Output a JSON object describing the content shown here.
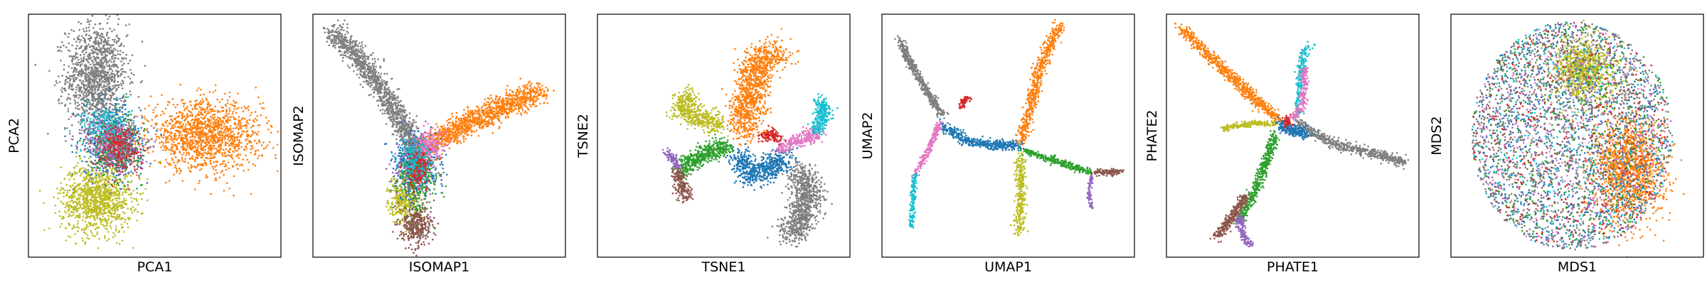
{
  "figure": {
    "colors": {
      "tab_blue": "#1f77b4",
      "tab_orange": "#ff7f0e",
      "tab_green": "#2ca02c",
      "tab_red": "#d62728",
      "tab_purple": "#9467bd",
      "tab_brown": "#8c564b",
      "tab_pink": "#e377c2",
      "tab_gray": "#7f7f7f",
      "tab_olive": "#bcbd22",
      "tab_cyan": "#17becf"
    }
  },
  "chart_data": [
    {
      "type": "scatter",
      "xlabel": "PCA1",
      "ylabel": "PCA2",
      "xlim": [
        0,
        1
      ],
      "ylim": [
        0,
        1
      ],
      "grid": false,
      "legend": "none",
      "ticks": "hidden",
      "clusters": [
        {
          "color": "#7f7f7f",
          "shape": "blob",
          "cx": 0.27,
          "cy": 0.74,
          "sx": 0.06,
          "sy": 0.11,
          "n": 1300
        },
        {
          "color": "#bcbd22",
          "shape": "blob",
          "cx": 0.27,
          "cy": 0.24,
          "sx": 0.07,
          "sy": 0.07,
          "n": 1100
        },
        {
          "color": "#ff7f0e",
          "shape": "blob",
          "cx": 0.7,
          "cy": 0.5,
          "sx": 0.11,
          "sy": 0.07,
          "n": 1400
        },
        {
          "color": "#1f77b4",
          "shape": "blob",
          "cx": 0.33,
          "cy": 0.48,
          "sx": 0.06,
          "sy": 0.07,
          "n": 500
        },
        {
          "color": "#2ca02c",
          "shape": "blob",
          "cx": 0.35,
          "cy": 0.46,
          "sx": 0.05,
          "sy": 0.06,
          "n": 300
        },
        {
          "color": "#17becf",
          "shape": "blob",
          "cx": 0.31,
          "cy": 0.53,
          "sx": 0.05,
          "sy": 0.05,
          "n": 250
        },
        {
          "color": "#e377c2",
          "shape": "blob",
          "cx": 0.33,
          "cy": 0.47,
          "sx": 0.05,
          "sy": 0.05,
          "n": 200
        },
        {
          "color": "#9467bd",
          "shape": "blob",
          "cx": 0.36,
          "cy": 0.44,
          "sx": 0.05,
          "sy": 0.05,
          "n": 180
        },
        {
          "color": "#8c564b",
          "shape": "blob",
          "cx": 0.34,
          "cy": 0.45,
          "sx": 0.05,
          "sy": 0.05,
          "n": 180
        },
        {
          "color": "#d62728",
          "shape": "blob",
          "cx": 0.36,
          "cy": 0.45,
          "sx": 0.04,
          "sy": 0.05,
          "n": 150
        }
      ]
    },
    {
      "type": "scatter",
      "xlabel": "ISOMAP1",
      "ylabel": "ISOMAP2",
      "xlim": [
        0,
        1
      ],
      "ylim": [
        0,
        1
      ],
      "grid": false,
      "legend": "none",
      "ticks": "hidden",
      "clusters": [
        {
          "color": "#7f7f7f",
          "shape": "curve",
          "path": [
            [
              0.08,
              0.93
            ],
            [
              0.18,
              0.83
            ],
            [
              0.28,
              0.68
            ],
            [
              0.38,
              0.5
            ],
            [
              0.42,
              0.42
            ]
          ],
          "spread": 0.022,
          "n": 1300
        },
        {
          "color": "#ff7f0e",
          "shape": "curve",
          "path": [
            [
              0.45,
              0.45
            ],
            [
              0.6,
              0.55
            ],
            [
              0.75,
              0.62
            ],
            [
              0.9,
              0.68
            ]
          ],
          "spread": 0.025,
          "n": 1200
        },
        {
          "color": "#bcbd22",
          "shape": "blob",
          "cx": 0.36,
          "cy": 0.24,
          "sx": 0.03,
          "sy": 0.05,
          "n": 350
        },
        {
          "color": "#8c564b",
          "shape": "blob",
          "cx": 0.41,
          "cy": 0.13,
          "sx": 0.03,
          "sy": 0.04,
          "n": 350
        },
        {
          "color": "#1f77b4",
          "shape": "blob",
          "cx": 0.41,
          "cy": 0.38,
          "sx": 0.04,
          "sy": 0.06,
          "n": 500
        },
        {
          "color": "#9467bd",
          "shape": "blob",
          "cx": 0.41,
          "cy": 0.36,
          "sx": 0.04,
          "sy": 0.07,
          "n": 250
        },
        {
          "color": "#2ca02c",
          "shape": "blob",
          "cx": 0.42,
          "cy": 0.33,
          "sx": 0.04,
          "sy": 0.07,
          "n": 250
        },
        {
          "color": "#e377c2",
          "shape": "blob",
          "cx": 0.46,
          "cy": 0.46,
          "sx": 0.03,
          "sy": 0.03,
          "n": 200
        },
        {
          "color": "#17becf",
          "shape": "blob",
          "cx": 0.4,
          "cy": 0.4,
          "sx": 0.03,
          "sy": 0.04,
          "n": 150
        },
        {
          "color": "#d62728",
          "shape": "blob",
          "cx": 0.42,
          "cy": 0.36,
          "sx": 0.03,
          "sy": 0.04,
          "n": 120
        }
      ]
    },
    {
      "type": "scatter",
      "xlabel": "TSNE1",
      "ylabel": "TSNE2",
      "xlim": [
        0,
        1
      ],
      "ylim": [
        0,
        1
      ],
      "grid": false,
      "legend": "none",
      "ticks": "hidden",
      "clusters": [
        {
          "color": "#ff7f0e",
          "shape": "curve",
          "path": [
            [
              0.58,
              0.52
            ],
            [
              0.6,
              0.68
            ],
            [
              0.64,
              0.8
            ],
            [
              0.72,
              0.84
            ]
          ],
          "spread": 0.035,
          "n": 1100
        },
        {
          "color": "#7f7f7f",
          "shape": "curve",
          "path": [
            [
              0.8,
              0.36
            ],
            [
              0.84,
              0.25
            ],
            [
              0.8,
              0.14
            ],
            [
              0.76,
              0.1
            ]
          ],
          "spread": 0.03,
          "n": 900
        },
        {
          "color": "#1f77b4",
          "shape": "curve",
          "path": [
            [
              0.56,
              0.42
            ],
            [
              0.6,
              0.34
            ],
            [
              0.68,
              0.36
            ],
            [
              0.74,
              0.42
            ]
          ],
          "spread": 0.025,
          "n": 600
        },
        {
          "color": "#2ca02c",
          "shape": "curve",
          "path": [
            [
              0.32,
              0.36
            ],
            [
              0.42,
              0.42
            ],
            [
              0.52,
              0.46
            ]
          ],
          "spread": 0.018,
          "n": 500
        },
        {
          "color": "#bcbd22",
          "shape": "curve",
          "path": [
            [
              0.37,
              0.67
            ],
            [
              0.33,
              0.62
            ],
            [
              0.38,
              0.58
            ],
            [
              0.48,
              0.55
            ]
          ],
          "spread": 0.022,
          "n": 500
        },
        {
          "color": "#e377c2",
          "shape": "curve",
          "path": [
            [
              0.72,
              0.45
            ],
            [
              0.8,
              0.48
            ],
            [
              0.88,
              0.52
            ]
          ],
          "spread": 0.015,
          "n": 280
        },
        {
          "color": "#17becf",
          "shape": "curve",
          "path": [
            [
              0.87,
              0.52
            ],
            [
              0.9,
              0.6
            ],
            [
              0.88,
              0.64
            ]
          ],
          "spread": 0.015,
          "n": 250
        },
        {
          "color": "#d62728",
          "shape": "curve",
          "path": [
            [
              0.65,
              0.49
            ],
            [
              0.69,
              0.51
            ],
            [
              0.72,
              0.48
            ]
          ],
          "spread": 0.01,
          "n": 120
        },
        {
          "color": "#8c564b",
          "shape": "curve",
          "path": [
            [
              0.32,
              0.35
            ],
            [
              0.33,
              0.3
            ],
            [
              0.35,
              0.25
            ]
          ],
          "spread": 0.015,
          "n": 200
        },
        {
          "color": "#9467bd",
          "shape": "curve",
          "path": [
            [
              0.27,
              0.44
            ],
            [
              0.3,
              0.4
            ],
            [
              0.32,
              0.37
            ]
          ],
          "spread": 0.008,
          "n": 90
        }
      ]
    },
    {
      "type": "scatter",
      "xlabel": "UMAP1",
      "ylabel": "UMAP2",
      "xlim": [
        0,
        1
      ],
      "ylim": [
        0,
        1
      ],
      "grid": false,
      "legend": "none",
      "ticks": "hidden",
      "clusters": [
        {
          "color": "#7f7f7f",
          "shape": "curve",
          "path": [
            [
              0.07,
              0.9
            ],
            [
              0.1,
              0.82
            ],
            [
              0.18,
              0.68
            ],
            [
              0.24,
              0.58
            ]
          ],
          "spread": 0.008,
          "n": 450
        },
        {
          "color": "#1f77b4",
          "shape": "curve",
          "path": [
            [
              0.24,
              0.54
            ],
            [
              0.33,
              0.48
            ],
            [
              0.45,
              0.46
            ],
            [
              0.55,
              0.46
            ]
          ],
          "spread": 0.01,
          "n": 450
        },
        {
          "color": "#e377c2",
          "shape": "curve",
          "path": [
            [
              0.23,
              0.55
            ],
            [
              0.18,
              0.43
            ],
            [
              0.13,
              0.34
            ]
          ],
          "spread": 0.006,
          "n": 200
        },
        {
          "color": "#17becf",
          "shape": "curve",
          "path": [
            [
              0.13,
              0.34
            ],
            [
              0.12,
              0.2
            ],
            [
              0.12,
              0.12
            ]
          ],
          "spread": 0.005,
          "n": 160
        },
        {
          "color": "#ff7f0e",
          "shape": "curve",
          "path": [
            [
              0.55,
              0.48
            ],
            [
              0.59,
              0.62
            ],
            [
              0.63,
              0.8
            ],
            [
              0.7,
              0.95
            ]
          ],
          "spread": 0.012,
          "n": 550
        },
        {
          "color": "#bcbd22",
          "shape": "curve",
          "path": [
            [
              0.55,
              0.42
            ],
            [
              0.55,
              0.25
            ],
            [
              0.54,
              0.1
            ]
          ],
          "spread": 0.01,
          "n": 300
        },
        {
          "color": "#2ca02c",
          "shape": "curve",
          "path": [
            [
              0.56,
              0.44
            ],
            [
              0.7,
              0.39
            ],
            [
              0.83,
              0.35
            ]
          ],
          "spread": 0.007,
          "n": 300
        },
        {
          "color": "#8c564b",
          "shape": "curve",
          "path": [
            [
              0.84,
              0.35
            ],
            [
              0.9,
              0.35
            ],
            [
              0.95,
              0.35
            ]
          ],
          "spread": 0.006,
          "n": 120
        },
        {
          "color": "#9467bd",
          "shape": "curve",
          "path": [
            [
              0.83,
              0.33
            ],
            [
              0.82,
              0.26
            ],
            [
              0.83,
              0.2
            ]
          ],
          "spread": 0.004,
          "n": 80
        },
        {
          "color": "#d62728",
          "shape": "curve",
          "path": [
            [
              0.31,
              0.62
            ],
            [
              0.33,
              0.65
            ],
            [
              0.35,
              0.65
            ]
          ],
          "spread": 0.006,
          "n": 60
        }
      ]
    },
    {
      "type": "scatter",
      "xlabel": "PHATE1",
      "ylabel": "PHATE2",
      "xlim": [
        0,
        1
      ],
      "ylim": [
        0,
        1
      ],
      "grid": false,
      "legend": "none",
      "ticks": "hidden",
      "clusters": [
        {
          "color": "#ff7f0e",
          "shape": "curve",
          "path": [
            [
              0.05,
              0.95
            ],
            [
              0.2,
              0.8
            ],
            [
              0.35,
              0.65
            ],
            [
              0.45,
              0.56
            ]
          ],
          "spread": 0.012,
          "n": 700
        },
        {
          "color": "#7f7f7f",
          "shape": "curve",
          "path": [
            [
              0.52,
              0.55
            ],
            [
              0.65,
              0.47
            ],
            [
              0.8,
              0.43
            ],
            [
              0.95,
              0.39
            ]
          ],
          "spread": 0.01,
          "n": 550
        },
        {
          "color": "#2ca02c",
          "shape": "curve",
          "path": [
            [
              0.43,
              0.5
            ],
            [
              0.38,
              0.35
            ],
            [
              0.33,
              0.22
            ],
            [
              0.28,
              0.15
            ]
          ],
          "spread": 0.01,
          "n": 450
        },
        {
          "color": "#8c564b",
          "shape": "curve",
          "path": [
            [
              0.31,
              0.25
            ],
            [
              0.25,
              0.15
            ],
            [
              0.2,
              0.08
            ]
          ],
          "spread": 0.01,
          "n": 300
        },
        {
          "color": "#9467bd",
          "shape": "curve",
          "path": [
            [
              0.29,
              0.17
            ],
            [
              0.3,
              0.1
            ],
            [
              0.33,
              0.05
            ]
          ],
          "spread": 0.008,
          "n": 150
        },
        {
          "color": "#bcbd22",
          "shape": "curve",
          "path": [
            [
              0.22,
              0.53
            ],
            [
              0.33,
              0.55
            ],
            [
              0.43,
              0.55
            ]
          ],
          "spread": 0.006,
          "n": 200
        },
        {
          "color": "#17becf",
          "shape": "curve",
          "path": [
            [
              0.52,
              0.58
            ],
            [
              0.53,
              0.75
            ],
            [
              0.55,
              0.86
            ],
            [
              0.57,
              0.87
            ]
          ],
          "spread": 0.008,
          "n": 200
        },
        {
          "color": "#e377c2",
          "shape": "curve",
          "path": [
            [
              0.5,
              0.57
            ],
            [
              0.54,
              0.62
            ],
            [
              0.55,
              0.78
            ]
          ],
          "spread": 0.008,
          "n": 180
        },
        {
          "color": "#1f77b4",
          "shape": "curve",
          "path": [
            [
              0.45,
              0.55
            ],
            [
              0.5,
              0.52
            ],
            [
              0.56,
              0.51
            ]
          ],
          "spread": 0.012,
          "n": 250
        },
        {
          "color": "#d62728",
          "shape": "blob",
          "cx": 0.48,
          "cy": 0.56,
          "sx": 0.01,
          "sy": 0.01,
          "n": 60
        }
      ]
    },
    {
      "type": "scatter",
      "xlabel": "MDS1",
      "ylabel": "MDS2",
      "xlim": [
        0,
        1
      ],
      "ylim": [
        0,
        1
      ],
      "grid": false,
      "legend": "none",
      "ticks": "hidden",
      "clusters": [
        {
          "color": "#bcbd22",
          "shape": "blob",
          "cx": 0.52,
          "cy": 0.77,
          "sx": 0.06,
          "sy": 0.06,
          "n": 900
        },
        {
          "color": "#ff7f0e",
          "shape": "blob",
          "cx": 0.7,
          "cy": 0.37,
          "sx": 0.07,
          "sy": 0.11,
          "n": 1300
        },
        {
          "color": "#1f77b4",
          "shape": "disc",
          "cx": 0.48,
          "cy": 0.5,
          "r": 0.42,
          "n": 900
        },
        {
          "color": "#7f7f7f",
          "shape": "disc",
          "cx": 0.48,
          "cy": 0.5,
          "r": 0.42,
          "n": 900
        },
        {
          "color": "#2ca02c",
          "shape": "disc",
          "cx": 0.48,
          "cy": 0.5,
          "r": 0.42,
          "n": 550
        },
        {
          "color": "#e377c2",
          "shape": "disc",
          "cx": 0.48,
          "cy": 0.5,
          "r": 0.42,
          "n": 400
        },
        {
          "color": "#17becf",
          "shape": "disc",
          "cx": 0.48,
          "cy": 0.5,
          "r": 0.42,
          "n": 400
        },
        {
          "color": "#9467bd",
          "shape": "disc",
          "cx": 0.48,
          "cy": 0.5,
          "r": 0.42,
          "n": 350
        },
        {
          "color": "#8c564b",
          "shape": "disc",
          "cx": 0.48,
          "cy": 0.5,
          "r": 0.42,
          "n": 350
        },
        {
          "color": "#d62728",
          "shape": "disc",
          "cx": 0.48,
          "cy": 0.5,
          "r": 0.42,
          "n": 300
        }
      ]
    }
  ]
}
